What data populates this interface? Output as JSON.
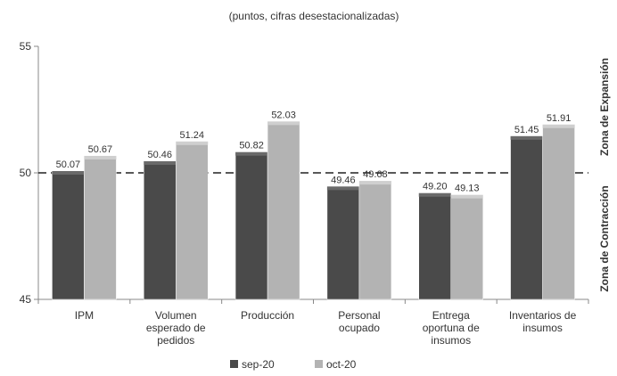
{
  "chart_data": {
    "type": "bar",
    "subtitle": "(puntos, cifras desestacionalizadas)",
    "categories": [
      [
        "IPM"
      ],
      [
        "Volumen",
        "esperado de",
        "pedidos"
      ],
      [
        "Producción"
      ],
      [
        "Personal",
        "ocupado"
      ],
      [
        "Entrega",
        "oportuna de",
        "insumos"
      ],
      [
        "Inventarios de",
        "insumos"
      ]
    ],
    "series": [
      {
        "name": "sep-20",
        "color": "#4a4a4a",
        "values": [
          50.07,
          50.46,
          50.82,
          49.46,
          49.2,
          51.45
        ],
        "labels": [
          "50.07",
          "50.46",
          "50.82",
          "49.46",
          "49.20",
          "51.45"
        ]
      },
      {
        "name": "oct-20",
        "color": "#b3b3b3",
        "values": [
          50.67,
          51.24,
          52.03,
          49.68,
          49.13,
          51.91
        ],
        "labels": [
          "50.67",
          "51.24",
          "52.03",
          "49.68",
          "49.13",
          "51.91"
        ]
      }
    ],
    "ylim": [
      45,
      55
    ],
    "yticks": [
      "45",
      "50",
      "55"
    ],
    "reference_line": 50,
    "zone_labels": {
      "expansion": "Zona de Expansión",
      "contraction": "Zona de Contracción"
    },
    "legend_position": "bottom"
  }
}
